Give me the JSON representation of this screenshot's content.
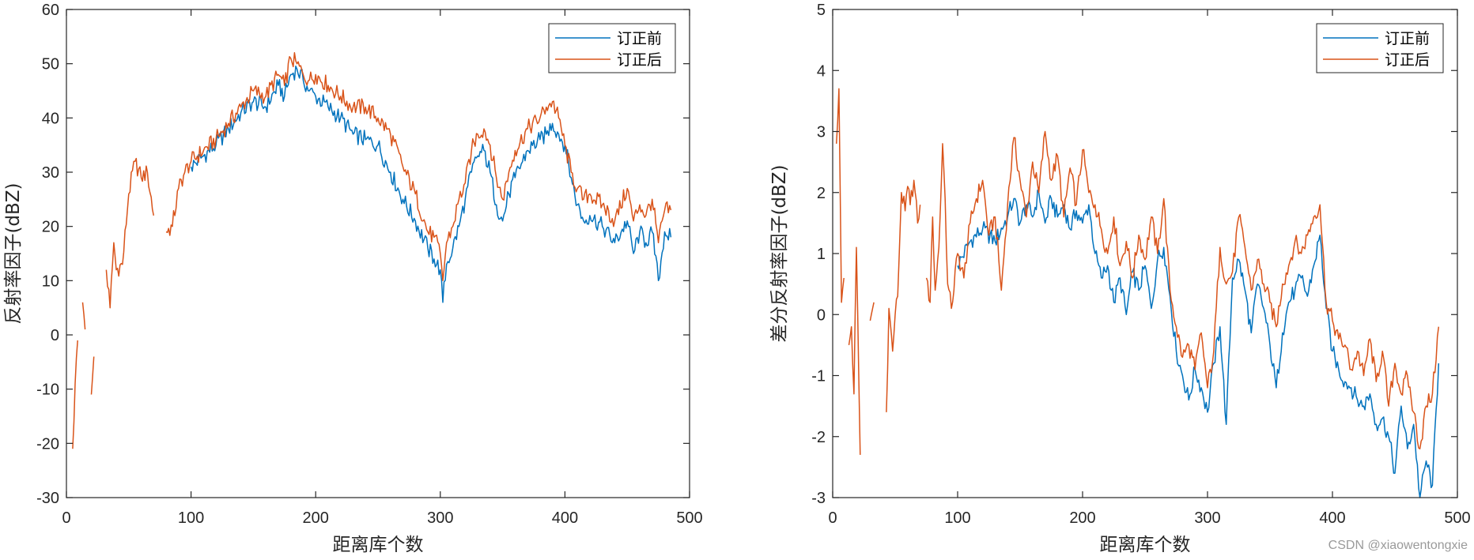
{
  "watermark": "CSDN @xiaowentongxie",
  "chart_data": [
    {
      "type": "line",
      "xlabel": "距离库个数",
      "ylabel": "反射率因子(dBZ)",
      "xlim": [
        0,
        500
      ],
      "ylim": [
        -30,
        60
      ],
      "xticks": [
        0,
        100,
        200,
        300,
        400,
        500
      ],
      "yticks": [
        -30,
        -20,
        -10,
        0,
        10,
        20,
        30,
        40,
        50,
        60
      ],
      "grid": false,
      "legend": "top-right",
      "series": [
        {
          "name": "订正前",
          "color": "#0072BD",
          "x": [
            100,
            110,
            120,
            130,
            140,
            150,
            160,
            170,
            175,
            180,
            185,
            190,
            195,
            200,
            210,
            220,
            230,
            240,
            250,
            260,
            270,
            280,
            290,
            295,
            300,
            302,
            305,
            310,
            315,
            320,
            325,
            330,
            335,
            340,
            345,
            350,
            355,
            360,
            370,
            380,
            385,
            390,
            395,
            400,
            405,
            410,
            415,
            420,
            430,
            440,
            450,
            455,
            460,
            465,
            470,
            475,
            480,
            485
          ],
          "values": [
            31,
            33,
            35,
            38,
            41,
            43,
            42,
            46,
            44,
            48,
            49,
            47,
            45,
            44,
            42,
            40,
            37,
            36,
            35,
            30,
            25,
            21,
            16,
            14,
            12,
            6,
            13,
            16,
            20,
            25,
            30,
            33,
            34,
            30,
            24,
            21,
            26,
            29,
            34,
            36,
            37,
            39,
            37,
            35,
            29,
            24,
            21,
            22,
            20,
            17,
            21,
            15,
            19,
            17,
            19,
            10,
            19,
            18
          ]
        },
        {
          "name": "订正后",
          "color": "#D95319",
          "x": [
            5,
            7,
            9,
            11,
            13,
            15,
            17,
            20,
            22,
            30,
            32,
            35,
            38,
            40,
            45,
            50,
            55,
            60,
            65,
            70,
            75,
            80,
            85,
            90,
            95,
            100,
            110,
            120,
            130,
            140,
            150,
            160,
            170,
            175,
            180,
            185,
            190,
            195,
            200,
            210,
            220,
            230,
            240,
            250,
            260,
            270,
            280,
            290,
            295,
            300,
            302,
            305,
            310,
            315,
            320,
            325,
            330,
            335,
            340,
            345,
            350,
            355,
            360,
            370,
            380,
            385,
            390,
            395,
            400,
            405,
            410,
            415,
            420,
            430,
            440,
            450,
            455,
            460,
            465,
            470,
            475,
            480,
            485
          ],
          "values": [
            -21,
            -9,
            -1,
            null,
            6,
            1,
            null,
            -11,
            -4,
            null,
            12,
            5,
            17,
            12,
            13,
            26,
            32,
            29,
            30,
            22,
            null,
            19,
            20,
            27,
            30,
            32,
            34,
            36,
            39,
            42,
            45,
            44,
            48,
            46,
            51,
            50,
            48,
            47,
            48,
            46,
            44,
            42,
            42,
            40,
            37,
            31,
            26,
            19,
            18,
            15,
            10,
            17,
            20,
            25,
            28,
            34,
            37,
            38,
            35,
            29,
            25,
            30,
            34,
            38,
            40,
            42,
            43,
            40,
            35,
            30,
            27,
            25,
            26,
            24,
            21,
            27,
            21,
            24,
            22,
            25,
            17,
            23,
            23
          ]
        }
      ]
    },
    {
      "type": "line",
      "xlabel": "距离库个数",
      "ylabel": "差分反射率因子(dBZ)",
      "xlim": [
        0,
        500
      ],
      "ylim": [
        -3,
        5
      ],
      "xticks": [
        0,
        100,
        200,
        300,
        400,
        500
      ],
      "yticks": [
        -3,
        -2,
        -1,
        0,
        1,
        2,
        3,
        4,
        5
      ],
      "grid": false,
      "legend": "top-right",
      "series": [
        {
          "name": "订正前",
          "color": "#0072BD",
          "x": [
            100,
            110,
            120,
            130,
            140,
            145,
            150,
            155,
            160,
            165,
            170,
            175,
            180,
            185,
            190,
            195,
            200,
            205,
            210,
            215,
            220,
            225,
            230,
            235,
            240,
            245,
            250,
            255,
            260,
            265,
            270,
            275,
            280,
            285,
            290,
            295,
            300,
            305,
            310,
            315,
            320,
            325,
            330,
            335,
            340,
            345,
            350,
            355,
            360,
            365,
            370,
            375,
            380,
            385,
            390,
            395,
            400,
            405,
            410,
            415,
            420,
            425,
            430,
            435,
            440,
            445,
            450,
            455,
            460,
            465,
            470,
            475,
            480,
            485
          ],
          "values": [
            0.8,
            1.2,
            1.4,
            1.2,
            1.6,
            1.9,
            1.5,
            1.8,
            1.6,
            2.0,
            1.5,
            1.9,
            1.6,
            1.8,
            1.4,
            1.7,
            1.5,
            1.8,
            1.0,
            0.6,
            0.8,
            0.2,
            0.6,
            0.0,
            0.7,
            0.4,
            0.8,
            0.1,
            0.9,
            1.1,
            0.3,
            -0.6,
            -1.0,
            -1.4,
            -0.9,
            -1.2,
            -1.6,
            -0.8,
            -0.2,
            -1.8,
            0.6,
            0.9,
            0.4,
            -0.3,
            0.5,
            0.1,
            -0.5,
            -1.2,
            -0.3,
            0.2,
            0.4,
            0.6,
            0.3,
            0.8,
            1.3,
            0.1,
            -0.6,
            -0.9,
            -1.1,
            -1.2,
            -1.4,
            -1.5,
            -1.3,
            -1.8,
            -1.7,
            -2.0,
            -2.6,
            -1.5,
            -2.2,
            -1.8,
            -3.0,
            -2.4,
            -2.8,
            -0.8
          ]
        },
        {
          "name": "订正后",
          "color": "#D95319",
          "x": [
            3,
            5,
            7,
            9,
            11,
            13,
            15,
            17,
            19,
            22,
            28,
            30,
            33,
            35,
            38,
            40,
            43,
            45,
            48,
            50,
            52,
            55,
            58,
            60,
            62,
            65,
            68,
            70,
            72,
            75,
            78,
            80,
            82,
            85,
            88,
            90,
            92,
            95,
            100,
            105,
            110,
            115,
            120,
            125,
            130,
            135,
            140,
            145,
            150,
            155,
            160,
            165,
            170,
            175,
            180,
            185,
            190,
            195,
            200,
            205,
            210,
            215,
            220,
            225,
            230,
            235,
            240,
            245,
            250,
            255,
            260,
            265,
            270,
            275,
            280,
            285,
            290,
            295,
            300,
            305,
            310,
            315,
            320,
            325,
            330,
            335,
            340,
            345,
            350,
            355,
            360,
            365,
            370,
            375,
            380,
            385,
            390,
            395,
            400,
            405,
            410,
            415,
            420,
            425,
            430,
            435,
            440,
            445,
            450,
            455,
            460,
            465,
            470,
            475,
            480,
            485
          ],
          "values": [
            2.8,
            3.7,
            0.2,
            0.6,
            null,
            -0.5,
            -0.2,
            -1.3,
            1.1,
            -2.3,
            null,
            -0.1,
            0.2,
            null,
            -0.6,
            null,
            -1.6,
            0.1,
            -0.6,
            0.0,
            0.3,
            2.0,
            1.7,
            2.1,
            1.8,
            2.2,
            1.5,
            1.8,
            null,
            0.6,
            0.2,
            1.6,
            0.4,
            1.1,
            2.8,
            1.9,
            0.5,
            0.1,
            1.0,
            0.6,
            1.5,
            1.9,
            2.2,
            1.3,
            1.6,
            0.4,
            1.8,
            2.9,
            2.2,
            1.6,
            2.5,
            2.0,
            3.0,
            2.2,
            2.6,
            1.6,
            2.4,
            1.8,
            2.7,
            2.0,
            1.8,
            1.4,
            1.0,
            1.6,
            0.8,
            1.2,
            0.6,
            1.3,
            0.9,
            1.6,
            1.0,
            1.9,
            0.4,
            -0.2,
            -0.7,
            -0.5,
            -0.9,
            -0.3,
            -1.2,
            -0.6,
            1.1,
            0.5,
            0.7,
            1.6,
            1.1,
            0.4,
            0.9,
            0.5,
            0.2,
            -0.2,
            0.5,
            0.8,
            1.2,
            1.0,
            1.3,
            1.6,
            1.8,
            0.2,
            -0.1,
            -0.4,
            -0.5,
            -0.9,
            -0.6,
            -1.0,
            -0.4,
            -1.1,
            -0.6,
            -1.5,
            -0.8,
            -1.3,
            -1.0,
            -1.6,
            -2.2,
            -1.5,
            -1.3,
            -0.2
          ]
        }
      ]
    }
  ]
}
